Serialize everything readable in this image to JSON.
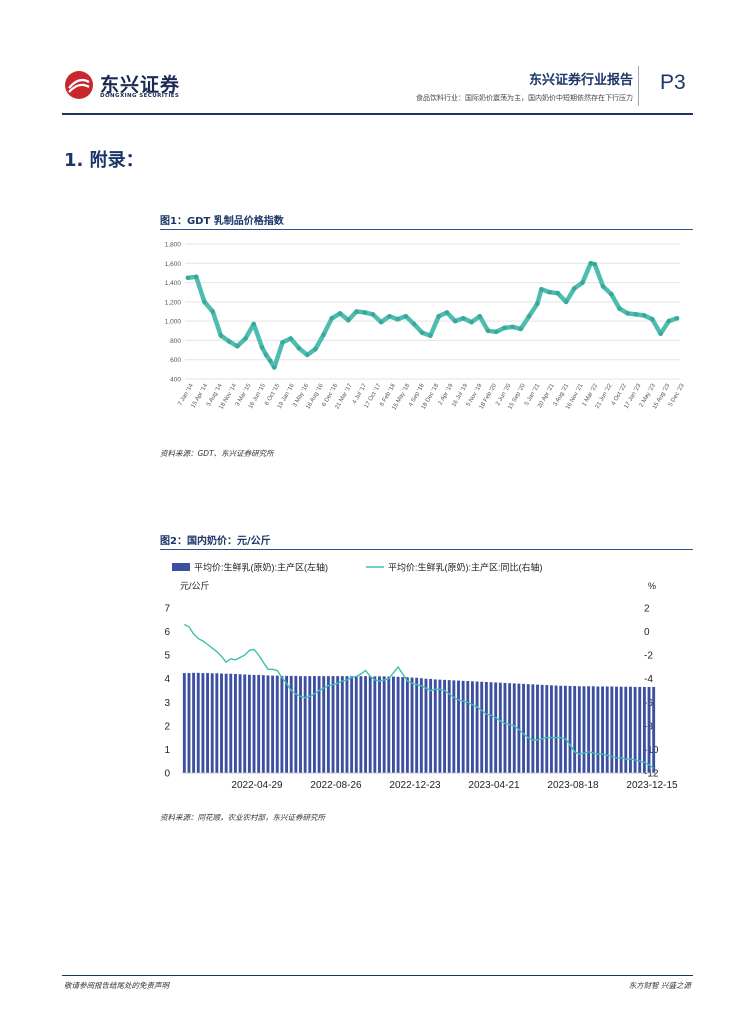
{
  "header": {
    "logo_cn": "东兴证券",
    "logo_en": "DONGXING SECURITIES",
    "report_title": "东兴证券行业报告",
    "subtitle": "食品饮料行业：国际奶价震荡为主，国内奶价中短期依然存在下行压力",
    "page": "P3",
    "colors": {
      "brand_red": "#c8282d",
      "brand_navy": "#1a3566"
    }
  },
  "section": {
    "title": "1. 附录："
  },
  "figure1": {
    "title": "图1：GDT 乳制品价格指数",
    "source": "资料来源：GDT、东兴证券研究所"
  },
  "figure2": {
    "title": "图2：国内奶价：元/公斤",
    "source": "资料来源：同花顺，农业农村部，东兴证券研究所"
  },
  "chart_data": [
    {
      "type": "line",
      "title": "",
      "xlabel": "",
      "ylabel": "",
      "ylim": [
        400,
        1800
      ],
      "yticks": [
        "400",
        "600",
        "800",
        "1,000",
        "1,200",
        "1,400",
        "1,600",
        "1,800"
      ],
      "grid": "horizontal",
      "series_color": "#4dbdb0",
      "x_ticks": [
        "7 Jan '14",
        "15 Apr '14",
        "5 Aug '14",
        "18 Nov '14",
        "3 Mar '15",
        "16 Jun '15",
        "6 Oct '15",
        "19 Jan '16",
        "3 May '16",
        "16 Aug '16",
        "6 Dec '16",
        "21 Mar '17",
        "4 Jul '17",
        "17 Oct '17",
        "6 Feb '18",
        "15 May '18",
        "4 Sep '18",
        "18 Dec '18",
        "2 Apr '19",
        "16 Jul '19",
        "5 Nov '19",
        "18 Feb '20",
        "2 Jun '20",
        "15 Sep '20",
        "5 Jan '21",
        "20 Apr '21",
        "3 Aug '21",
        "16 Nov '21",
        "1 Mar '22",
        "21 Jun '22",
        "4 Oct '22",
        "17 Jan '23",
        "2 May '23",
        "15 Aug '23",
        "5 Dec '23"
      ],
      "x": [
        "2014-01",
        "2014-03",
        "2014-05",
        "2014-07",
        "2014-09",
        "2014-11",
        "2015-01",
        "2015-03",
        "2015-05",
        "2015-07",
        "2015-08",
        "2015-09",
        "2015-10",
        "2015-12",
        "2016-02",
        "2016-04",
        "2016-06",
        "2016-08",
        "2016-10",
        "2016-12",
        "2017-02",
        "2017-04",
        "2017-06",
        "2017-08",
        "2017-10",
        "2017-12",
        "2018-02",
        "2018-04",
        "2018-06",
        "2018-08",
        "2018-10",
        "2018-12",
        "2019-02",
        "2019-04",
        "2019-06",
        "2019-08",
        "2019-10",
        "2019-12",
        "2020-02",
        "2020-04",
        "2020-06",
        "2020-08",
        "2020-10",
        "2020-12",
        "2021-02",
        "2021-03",
        "2021-05",
        "2021-07",
        "2021-09",
        "2021-11",
        "2022-01",
        "2022-03",
        "2022-04",
        "2022-06",
        "2022-08",
        "2022-10",
        "2022-12",
        "2023-02",
        "2023-04",
        "2023-06",
        "2023-08",
        "2023-10",
        "2023-12"
      ],
      "values": [
        1450,
        1460,
        1200,
        1100,
        850,
        790,
        740,
        820,
        970,
        730,
        650,
        590,
        520,
        780,
        820,
        720,
        650,
        710,
        860,
        1030,
        1080,
        1010,
        1100,
        1090,
        1070,
        990,
        1050,
        1020,
        1050,
        970,
        880,
        850,
        1050,
        1090,
        1000,
        1030,
        990,
        1050,
        900,
        890,
        930,
        940,
        920,
        1050,
        1180,
        1330,
        1300,
        1290,
        1200,
        1340,
        1400,
        1600,
        1590,
        1360,
        1280,
        1130,
        1080,
        1070,
        1060,
        1020,
        870,
        1000,
        1030
      ]
    },
    {
      "type": "bar+line",
      "title": "",
      "legend": [
        "平均价:生鲜乳(原奶):主产区(左轴)",
        "平均价:生鲜乳(原奶):主产区:同比(右轴)"
      ],
      "legend_position": "top",
      "left_unit": "元/公斤",
      "right_unit": "%",
      "ylim_left": [
        0,
        7
      ],
      "ylim_right": [
        -12,
        2
      ],
      "x_ticks": [
        "2022-04-29",
        "2022-08-26",
        "2022-12-23",
        "2023-04-21",
        "2023-08-18",
        "2023-12-15"
      ],
      "series": [
        {
          "name": "平均价:生鲜乳(原奶):主产区(左轴)",
          "color": "#3c4fa0",
          "axis": "left",
          "values": [
            4.24,
            4.24,
            4.25,
            4.25,
            4.24,
            4.24,
            4.23,
            4.23,
            4.22,
            4.21,
            4.21,
            4.2,
            4.19,
            4.18,
            4.17,
            4.16,
            4.16,
            4.15,
            4.14,
            4.13,
            4.13,
            4.12,
            4.12,
            4.12,
            4.12,
            4.11,
            4.11,
            4.11,
            4.11,
            4.11,
            4.11,
            4.11,
            4.11,
            4.11,
            4.11,
            4.11,
            4.11,
            4.11,
            4.11,
            4.11,
            4.1,
            4.1,
            4.1,
            4.1,
            4.09,
            4.09,
            4.08,
            4.07,
            4.06,
            4.05,
            4.04,
            4.02,
            4.0,
            3.99,
            3.97,
            3.96,
            3.95,
            3.94,
            3.93,
            3.92,
            3.91,
            3.9,
            3.89,
            3.88,
            3.87,
            3.86,
            3.85,
            3.84,
            3.83,
            3.82,
            3.81,
            3.8,
            3.79,
            3.78,
            3.77,
            3.76,
            3.75,
            3.74,
            3.73,
            3.72,
            3.71,
            3.7,
            3.7,
            3.69,
            3.69,
            3.68,
            3.68,
            3.68,
            3.68,
            3.67,
            3.67,
            3.67,
            3.67,
            3.66,
            3.66,
            3.66,
            3.66,
            3.65,
            3.65,
            3.65,
            3.65,
            3.65
          ]
        },
        {
          "name": "平均价:生鲜乳(原奶):主产区:同比(右轴)",
          "color": "#3fbfae",
          "axis": "right",
          "values": [
            0.6,
            0.4,
            -0.2,
            -0.6,
            -0.8,
            -1.1,
            -1.4,
            -1.7,
            -2.1,
            -2.6,
            -2.3,
            -2.4,
            -2.2,
            -2.0,
            -1.6,
            -1.5,
            -2.0,
            -2.6,
            -3.2,
            -3.2,
            -3.3,
            -3.9,
            -4.4,
            -5.0,
            -5.3,
            -5.5,
            -5.6,
            -5.5,
            -5.3,
            -5.0,
            -4.8,
            -4.6,
            -4.5,
            -4.4,
            -4.2,
            -4.1,
            -3.9,
            -3.8,
            -3.6,
            -3.3,
            -3.8,
            -4.1,
            -4.2,
            -4.1,
            -4.0,
            -3.5,
            -3.0,
            -3.6,
            -4.2,
            -4.4,
            -4.5,
            -4.6,
            -4.8,
            -5.0,
            -4.9,
            -4.9,
            -5.0,
            -5.3,
            -5.6,
            -5.8,
            -5.9,
            -6.0,
            -6.2,
            -6.4,
            -6.7,
            -7.0,
            -7.1,
            -7.3,
            -7.6,
            -7.8,
            -7.9,
            -8.0,
            -8.3,
            -8.7,
            -9.0,
            -9.2,
            -9.2,
            -9.1,
            -9.0,
            -9.0,
            -9.0,
            -9.0,
            -9.1,
            -9.6,
            -10.2,
            -10.4,
            -10.3,
            -10.2,
            -10.3,
            -10.4,
            -10.4,
            -10.5,
            -10.6,
            -10.7,
            -10.7,
            -10.8,
            -10.8,
            -10.9,
            -11.0,
            -11.1,
            -11.3,
            -11.6
          ]
        }
      ]
    }
  ],
  "footer": {
    "left": "敬请参阅报告结尾处的免责声明",
    "right": "东方财智  兴盛之源"
  }
}
